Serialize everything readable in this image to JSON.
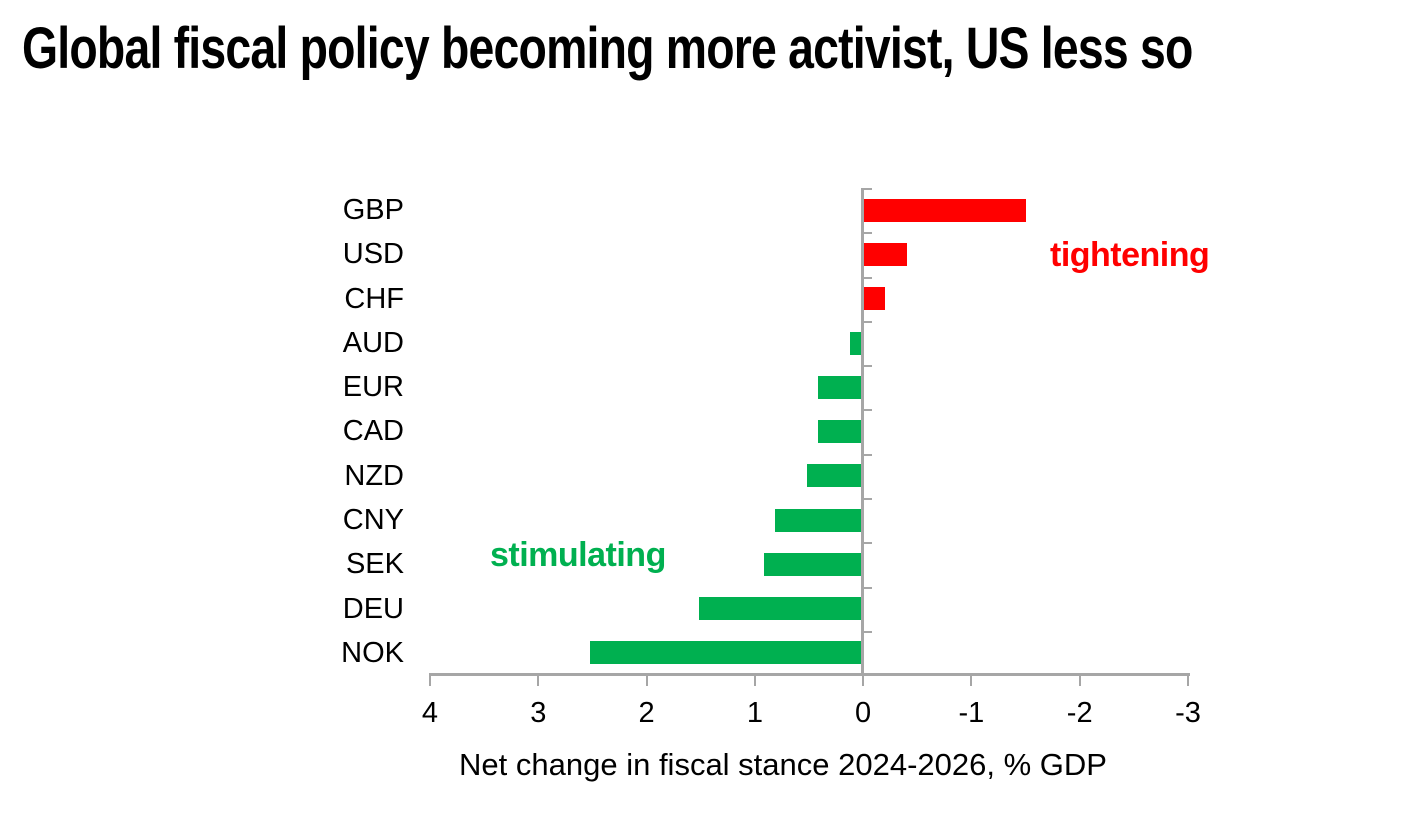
{
  "title": "Global fiscal policy becoming more activist, US less so",
  "chart_data": {
    "type": "bar",
    "orientation": "horizontal",
    "title": "Global fiscal policy becoming more activist, US less so",
    "categories": [
      "GBP",
      "USD",
      "CHF",
      "AUD",
      "EUR",
      "CAD",
      "NZD",
      "CNY",
      "SEK",
      "DEU",
      "NOK"
    ],
    "values": [
      -1.5,
      -0.4,
      -0.2,
      0.1,
      0.4,
      0.4,
      0.5,
      0.8,
      0.9,
      1.5,
      2.5
    ],
    "xlabel": "Net change in fiscal stance 2024-2026, % GDP",
    "x_ticks": [
      4,
      3,
      2,
      1,
      0,
      -1,
      -2,
      -3
    ],
    "xlim": [
      4,
      -3
    ],
    "axis_reversed": true,
    "grid": false,
    "legend": "none",
    "colors": {
      "positive": "#00B050",
      "negative": "#FF0000",
      "axis": "#A6A6A6",
      "text": "#000000"
    },
    "annotations": [
      {
        "text": "tightening",
        "color": "#FF0000",
        "meaning": "negative values side"
      },
      {
        "text": "stimulating",
        "color": "#00B050",
        "meaning": "positive values side"
      }
    ]
  }
}
